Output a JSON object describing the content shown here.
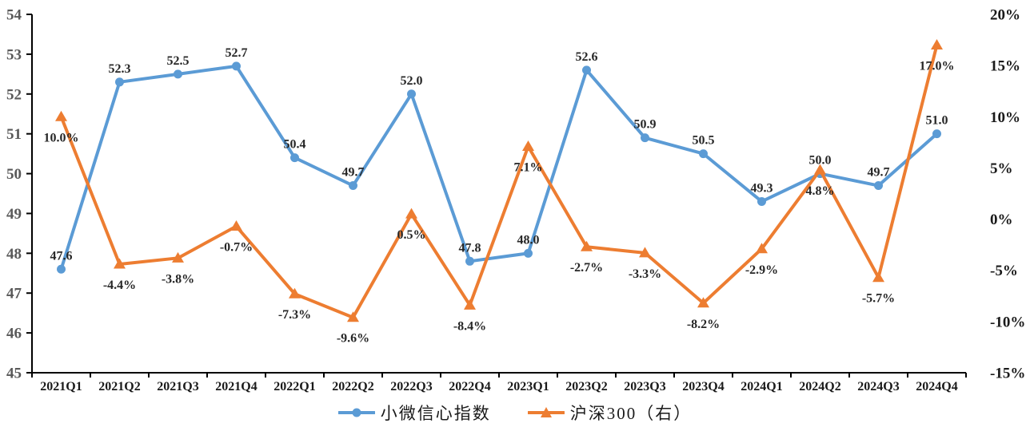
{
  "chart_data": {
    "type": "line",
    "title": "",
    "categories": [
      "2021Q1",
      "2021Q2",
      "2021Q3",
      "2021Q4",
      "2022Q1",
      "2022Q2",
      "2022Q3",
      "2022Q4",
      "2023Q1",
      "2023Q2",
      "2023Q3",
      "2023Q4",
      "2024Q1",
      "2024Q2",
      "2024Q3",
      "2024Q4"
    ],
    "series": [
      {
        "name": "小微信心指数",
        "axis": "left",
        "color": "#5B9BD5",
        "marker": "circle",
        "label_position": "above",
        "values": [
          47.6,
          52.3,
          52.5,
          52.7,
          50.4,
          49.7,
          52.0,
          47.8,
          48.0,
          52.6,
          50.9,
          50.5,
          49.3,
          50.0,
          49.7,
          51.0
        ],
        "labels": [
          "47.6",
          "52.3",
          "52.5",
          "52.7",
          "50.4",
          "49.7",
          "52.0",
          "47.8",
          "48.0",
          "52.6",
          "50.9",
          "50.5",
          "49.3",
          "50.0",
          "49.7",
          "51.0"
        ]
      },
      {
        "name": "沪深300（右）",
        "axis": "right",
        "color": "#ED7D31",
        "marker": "triangle",
        "label_position": "below",
        "values": [
          10.0,
          -4.4,
          -3.8,
          -0.7,
          -7.3,
          -9.6,
          0.5,
          -8.4,
          7.1,
          -2.7,
          -3.3,
          -8.2,
          -2.9,
          4.8,
          -5.7,
          17.0
        ],
        "labels": [
          "10.0%",
          "-4.4%",
          "-3.8%",
          "-0.7%",
          "-7.3%",
          "-9.6%",
          "0.5%",
          "-8.4%",
          "7.1%",
          "-2.7%",
          "-3.3%",
          "-8.2%",
          "-2.9%",
          "4.8%",
          "-5.7%",
          "17.0%"
        ]
      }
    ],
    "left_axis": {
      "min": 45,
      "max": 54,
      "tick_values": [
        54,
        53,
        52,
        51,
        50,
        49,
        48,
        47,
        46,
        45
      ],
      "tick_labels": [
        "54",
        "53",
        "52",
        "51",
        "50",
        "49",
        "48",
        "47",
        "46",
        "45"
      ]
    },
    "right_axis": {
      "min": -15,
      "max": 20,
      "tick_values": [
        20,
        15,
        10,
        5,
        0,
        -5,
        -10,
        -15
      ],
      "tick_labels": [
        "20%",
        "15%",
        "10%",
        "5%",
        "0%",
        "-5%",
        "-10%",
        "-15%"
      ]
    },
    "grid": false,
    "legend_position": "bottom",
    "axis_color": "#000000",
    "left_tick_color": "#595959",
    "right_tick_color": "#1a1a1a",
    "x_tick_color": "#1a1a1a",
    "data_label_color": "#262626"
  }
}
